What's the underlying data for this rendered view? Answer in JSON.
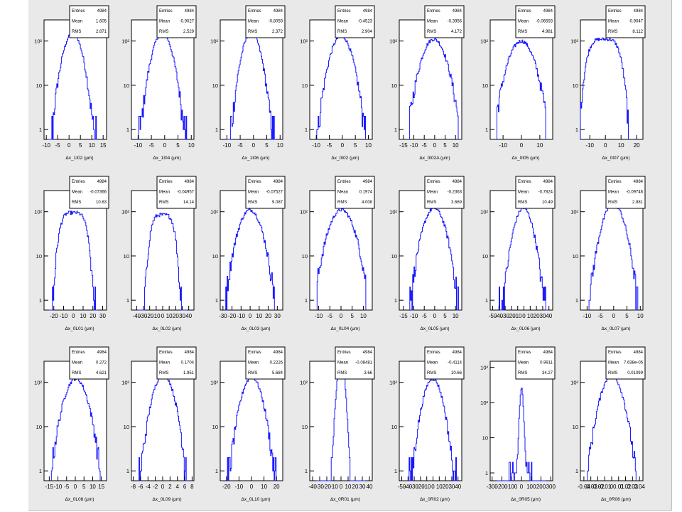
{
  "stats_labels": {
    "entries": "Entries",
    "mean": "Mean",
    "rms": "RMS"
  },
  "colors": {
    "histogram": "#1a1aff",
    "frame": "#000000",
    "pad_background": "#ffffff",
    "canvas_background": "#e9e9e9"
  },
  "chart_data": [
    {
      "type": "histogram",
      "xlabel": "Δx_1I02 (μm)",
      "entries": "4984",
      "mean": "1.605",
      "rms": "2.871",
      "x_ticks": [
        "-10",
        "-5",
        "0",
        "5",
        "10",
        "15"
      ],
      "xlim": [
        -11,
        16.5
      ],
      "center": 1.6,
      "sigma": 2.9,
      "peak": 150,
      "ylog": true,
      "y_ticks": [
        "1",
        "10",
        "10²"
      ]
    },
    {
      "type": "histogram",
      "xlabel": "Δx_1I04 (μm)",
      "entries": "4984",
      "mean": "-0.9027",
      "rms": "2.529",
      "x_ticks": [
        "-10",
        "-5",
        "0",
        "5",
        "10"
      ],
      "xlim": [
        -12.5,
        11
      ],
      "center": -0.9,
      "sigma": 2.6,
      "peak": 150,
      "ylog": true,
      "y_ticks": [
        "1",
        "10",
        "10²"
      ]
    },
    {
      "type": "histogram",
      "xlabel": "Δx_1I06 (μm)",
      "entries": "4984",
      "mean": "-0.8059",
      "rms": "2.372",
      "x_ticks": [
        "-10",
        "-5",
        "0",
        "5",
        "10"
      ],
      "xlim": [
        -12.5,
        11
      ],
      "center": -0.8,
      "sigma": 2.4,
      "peak": 155,
      "ylog": true,
      "y_ticks": [
        "1",
        "10",
        "10²"
      ]
    },
    {
      "type": "histogram",
      "xlabel": "Δx_0I02 (μm)",
      "entries": "4984",
      "mean": "-0.4523",
      "rms": "2.904",
      "x_ticks": [
        "-10",
        "-5",
        "0",
        "5",
        "10"
      ],
      "xlim": [
        -12.5,
        11.5
      ],
      "center": -0.45,
      "sigma": 2.9,
      "peak": 130,
      "ylog": true,
      "y_ticks": [
        "1",
        "10",
        "10²"
      ]
    },
    {
      "type": "histogram",
      "xlabel": "Δx_0I02A (μm)",
      "entries": "4984",
      "mean": "-0.3956",
      "rms": "4.172",
      "x_ticks": [
        "-15",
        "-10",
        "-5",
        "0",
        "5",
        "10"
      ],
      "xlim": [
        -17,
        13
      ],
      "center": -0.4,
      "sigma": 4.1,
      "peak": 110,
      "ylog": true,
      "y_ticks": [
        "1",
        "10",
        "10²"
      ]
    },
    {
      "type": "histogram",
      "xlabel": "Δx_0I05 (μm)",
      "entries": "4984",
      "mean": "-0.06593",
      "rms": "4.981",
      "x_ticks": [
        "-10",
        "0",
        "10"
      ],
      "xlim": [
        -17,
        17
      ],
      "center": -0.07,
      "sigma": 4.9,
      "peak": 100,
      "ylog": true,
      "y_ticks": [
        "1",
        "10",
        "10²"
      ]
    },
    {
      "type": "histogram",
      "xlabel": "Δx_0I07 (μm)",
      "entries": "4984",
      "mean": "-0.9047",
      "rms": "8.112",
      "x_ticks": [
        "-10",
        "0",
        "10",
        "20"
      ],
      "xlim": [
        -16,
        24
      ],
      "center": -0.9,
      "sigma": 8.0,
      "peak": 110,
      "ylog": true,
      "flat": true,
      "y_ticks": [
        "1",
        "10",
        "10²"
      ]
    },
    {
      "type": "histogram",
      "xlabel": "Δx_0L01 (μm)",
      "entries": "4984",
      "mean": "-0.07366",
      "rms": "10.63",
      "x_ticks": [
        "-20",
        "-10",
        "0",
        "10",
        "20",
        "30"
      ],
      "xlim": [
        -30,
        34
      ],
      "center": -0.07,
      "sigma": 10.5,
      "peak": 95,
      "ylog": true,
      "flat": true,
      "y_ticks": [
        "1",
        "10",
        "10²"
      ]
    },
    {
      "type": "histogram",
      "xlabel": "Δx_0L02 (μm)",
      "entries": "4984",
      "mean": "-0.04957",
      "rms": "14.14",
      "x_ticks": [
        "-40",
        "-30",
        "-20",
        "-10",
        "0",
        "10",
        "20",
        "30",
        "40"
      ],
      "xlim": [
        -48,
        48
      ],
      "center": -0.05,
      "sigma": 14.0,
      "peak": 85,
      "ylog": true,
      "flat": true,
      "y_ticks": [
        "1",
        "10",
        "10²"
      ]
    },
    {
      "type": "histogram",
      "xlabel": "Δx_0L03 (μm)",
      "entries": "4984",
      "mean": "-0.07527",
      "rms": "9.087",
      "x_ticks": [
        "-30",
        "-20",
        "-10",
        "0",
        "10",
        "20",
        "30"
      ],
      "xlim": [
        -33,
        36
      ],
      "center": -0.07,
      "sigma": 9.0,
      "peak": 110,
      "ylog": true,
      "y_ticks": [
        "1",
        "10",
        "10²"
      ]
    },
    {
      "type": "histogram",
      "xlabel": "Δx_0L04 (μm)",
      "entries": "4984",
      "mean": "0.1974",
      "rms": "4.008",
      "x_ticks": [
        "-10",
        "-5",
        "0",
        "5",
        "10"
      ],
      "xlim": [
        -14,
        14
      ],
      "center": 0.2,
      "sigma": 4.0,
      "peak": 110,
      "ylog": true,
      "y_ticks": [
        "1",
        "10",
        "10²"
      ]
    },
    {
      "type": "histogram",
      "xlabel": "Δx_0L05 (μm)",
      "entries": "4984",
      "mean": "-0.2363",
      "rms": "3.669",
      "x_ticks": [
        "-15",
        "-10",
        "-5",
        "0",
        "5",
        "10"
      ],
      "xlim": [
        -17,
        13
      ],
      "center": -0.24,
      "sigma": 3.7,
      "peak": 120,
      "ylog": true,
      "y_ticks": [
        "1",
        "10",
        "10²"
      ]
    },
    {
      "type": "histogram",
      "xlabel": "Δx_0L06 (μm)",
      "entries": "4984",
      "mean": "-0.7824",
      "rms": "10.49",
      "x_ticks": [
        "-50",
        "-40",
        "-30",
        "-20",
        "-10",
        "0",
        "10",
        "20",
        "30",
        "40"
      ],
      "xlim": [
        -54,
        46
      ],
      "center": -0.8,
      "sigma": 10.5,
      "peak": 120,
      "ylog": true,
      "y_ticks": [
        "1",
        "10",
        "10²"
      ]
    },
    {
      "type": "histogram",
      "xlabel": "Δx_0L07 (μm)",
      "entries": "4984",
      "mean": "-0.09746",
      "rms": "2.881",
      "x_ticks": [
        "-10",
        "-5",
        "0",
        "5",
        "10"
      ],
      "xlim": [
        -12.5,
        11
      ],
      "center": -0.1,
      "sigma": 2.9,
      "peak": 150,
      "ylog": true,
      "y_ticks": [
        "1",
        "10",
        "10²"
      ]
    },
    {
      "type": "histogram",
      "xlabel": "Δx_0L08 (μm)",
      "entries": "4984",
      "mean": "0.272",
      "rms": "4.621",
      "x_ticks": [
        "-15",
        "-10",
        "-5",
        "0",
        "5",
        "10",
        "15"
      ],
      "xlim": [
        -18,
        18
      ],
      "center": 0.27,
      "sigma": 4.6,
      "peak": 120,
      "ylog": true,
      "y_ticks": [
        "1",
        "10",
        "10²"
      ]
    },
    {
      "type": "histogram",
      "xlabel": "Δx_0L09 (μm)",
      "entries": "4984",
      "mean": "0.1704",
      "rms": "1.951",
      "x_ticks": [
        "-8",
        "-6",
        "-4",
        "-2",
        "0",
        "2",
        "4",
        "6",
        "8"
      ],
      "xlim": [
        -8.5,
        8.5
      ],
      "center": 0.17,
      "sigma": 1.95,
      "peak": 150,
      "ylog": true,
      "y_ticks": [
        "1",
        "10",
        "10²"
      ]
    },
    {
      "type": "histogram",
      "xlabel": "Δx_0L10 (μm)",
      "entries": "4984",
      "mean": "0.2226",
      "rms": "5.684",
      "x_ticks": [
        "-20",
        "-10",
        "0",
        "10",
        "20"
      ],
      "xlim": [
        -25,
        25
      ],
      "center": 0.22,
      "sigma": 5.7,
      "peak": 130,
      "ylog": true,
      "y_ticks": [
        "1",
        "10",
        "10²"
      ]
    },
    {
      "type": "histogram",
      "xlabel": "Δx_0R01 (μm)",
      "entries": "4984",
      "mean": "-0.08481",
      "rms": "3.66",
      "x_ticks": [
        "-40",
        "-30",
        "-20",
        "-10",
        "0",
        "10",
        "20",
        "30",
        "40"
      ],
      "xlim": [
        -44,
        44
      ],
      "center": -0.08,
      "sigma": 3.7,
      "peak": 320,
      "ylog": true,
      "y_ticks": [
        "1",
        "10",
        "10²"
      ]
    },
    {
      "type": "histogram",
      "xlabel": "Δx_0R02 (μm)",
      "entries": "4984",
      "mean": "-0.4114",
      "rms": "10.66",
      "x_ticks": [
        "-50",
        "-40",
        "-30",
        "-20",
        "-10",
        "0",
        "10",
        "20",
        "30",
        "40"
      ],
      "xlim": [
        -54,
        46
      ],
      "center": -0.4,
      "sigma": 10.6,
      "peak": 120,
      "ylog": true,
      "y_ticks": [
        "1",
        "10",
        "10²"
      ]
    },
    {
      "type": "histogram",
      "xlabel": "Δx_0R05 (μm)",
      "entries": "4984",
      "mean": "0.9911",
      "rms": "34.27",
      "x_ticks": [
        "-300",
        "-200",
        "-100",
        "0",
        "100",
        "200",
        "300"
      ],
      "xlim": [
        -320,
        320
      ],
      "center": 1.0,
      "sigma": 34.3,
      "peak": 250,
      "ylog": true,
      "narrow": true,
      "y_ticks": [
        "1",
        "10",
        "10²",
        "10³"
      ]
    },
    {
      "type": "histogram",
      "xlabel": "Δx_0R06 (μm)",
      "entries": "4984",
      "mean": "7.638e-05",
      "rms": "0.01099",
      "x_ticks": [
        "-0.04",
        "-0.03",
        "-0.02",
        "-0.01",
        "0",
        "0.01",
        "0.02",
        "0.03",
        "0.04"
      ],
      "xlim": [
        -0.045,
        0.045
      ],
      "center": 0,
      "sigma": 0.011,
      "peak": 140,
      "ylog": true,
      "y_ticks": [
        "1",
        "10",
        "10²"
      ]
    }
  ]
}
